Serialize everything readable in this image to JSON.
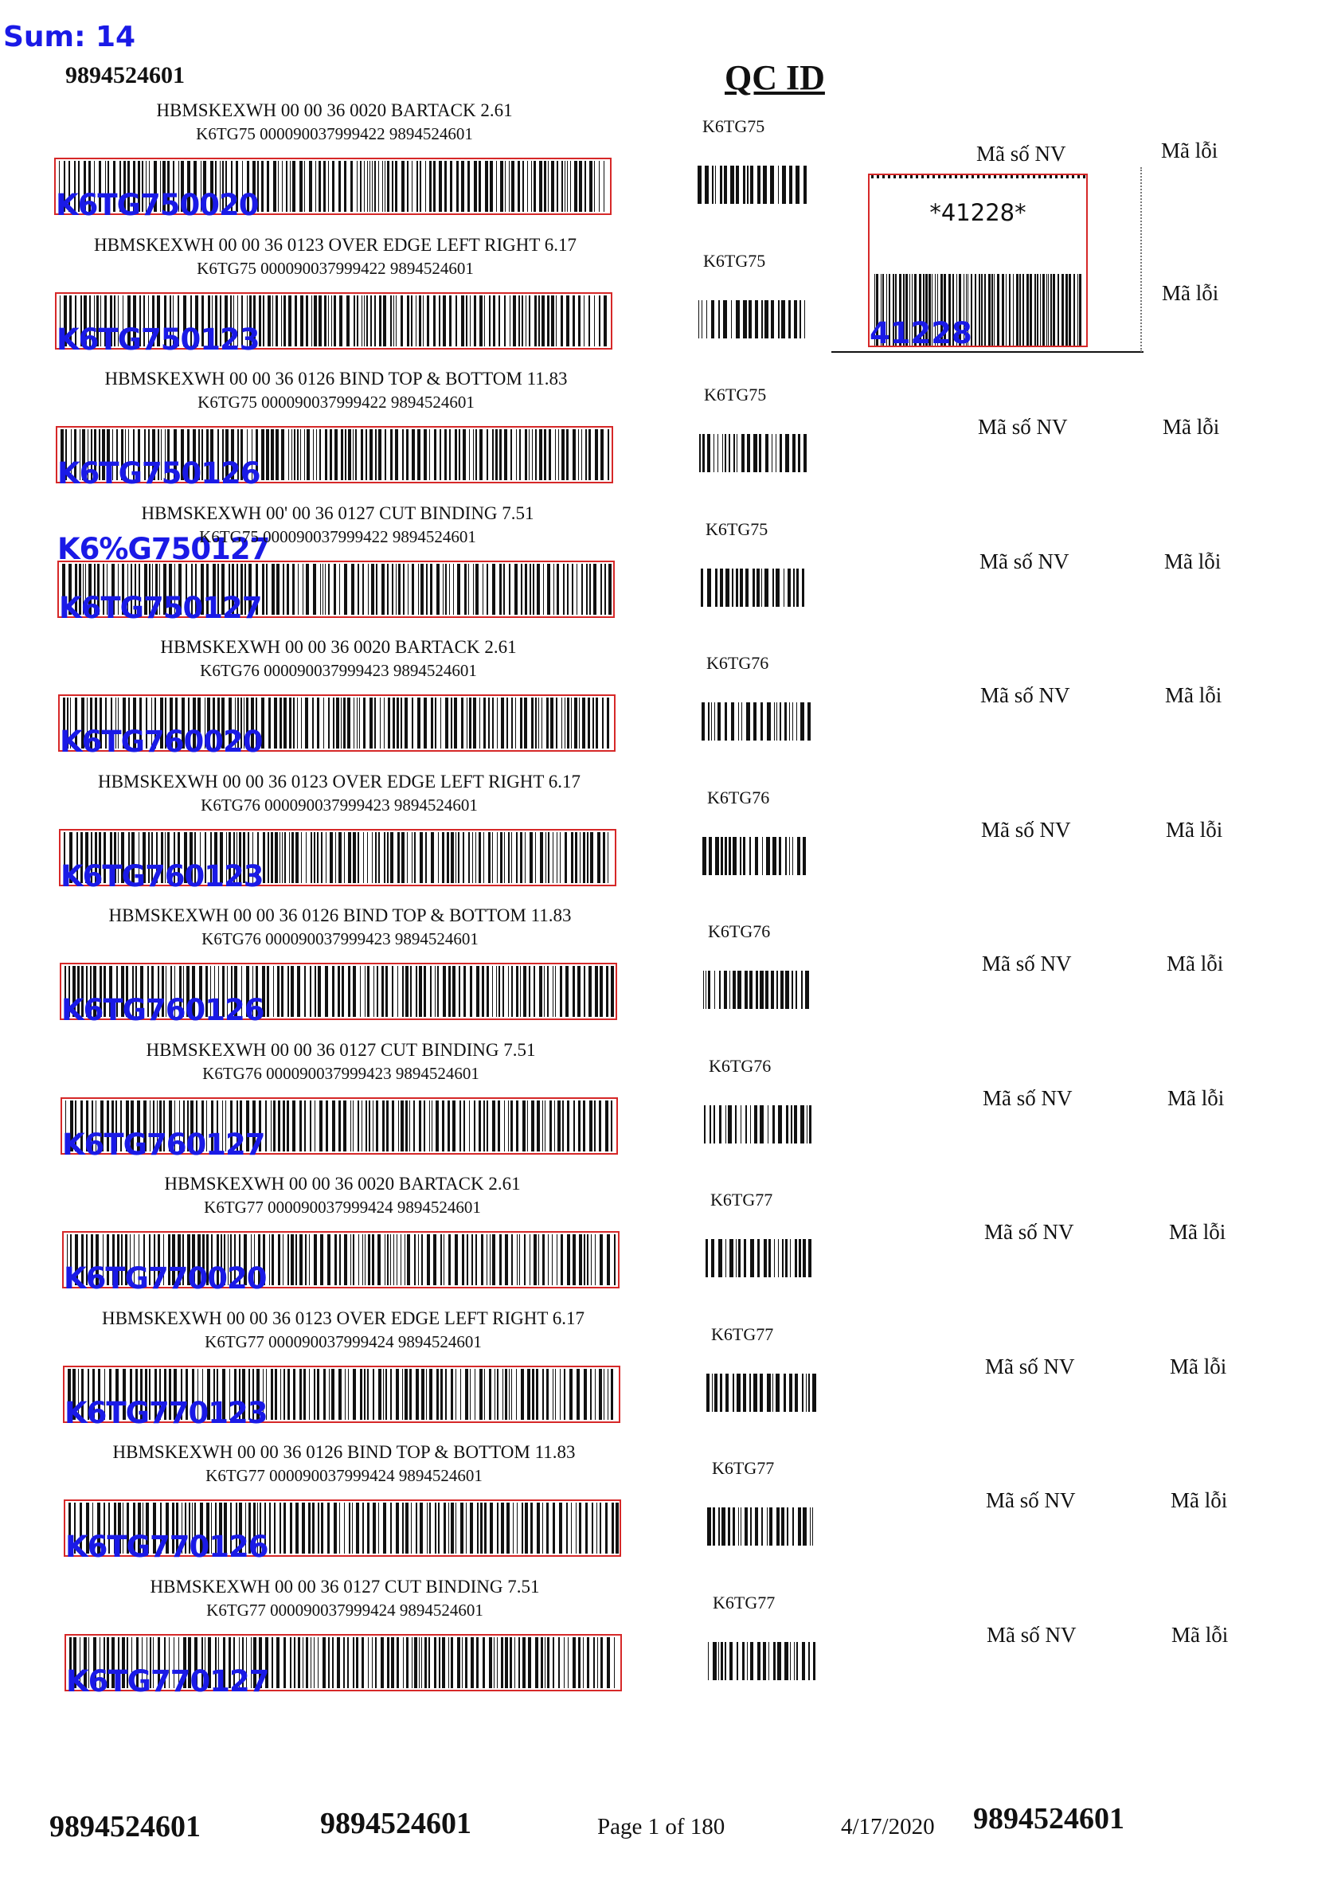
{
  "header": {
    "sum_label": "Sum: 14",
    "top_number": "9894524601",
    "qc_title": "QC ID"
  },
  "labels": [
    {
      "line1": "HBMSKEXWH 00  00 36 0020 BARTACK 2.61",
      "line2": "K6TG75 000090037999422 9894524601",
      "barcode_text": "K6TG750020",
      "qc_code": "K6TG75"
    },
    {
      "line1": "HBMSKEXWH 00  00 36 0123 OVER EDGE LEFT RIGHT 6.17",
      "line2": "K6TG75 000090037999422 9894524601",
      "barcode_text": "K6TG750123",
      "qc_code": "K6TG75"
    },
    {
      "line1": "HBMSKEXWH 00  00 36 0126 BIND TOP & BOTTOM 11.83",
      "line2": "K6TG75 000090037999422 9894524601",
      "barcode_text": "K6TG750126",
      "qc_code": "K6TG75"
    },
    {
      "line1": "HBMSKEXWH 00' 00 36 0127 CUT BINDING 7.51",
      "line2": "K6TG75 000090037999422 9894524601",
      "barcode_text": "K6TG750127",
      "qc_code": "K6TG75"
    },
    {
      "line1": "HBMSKEXWH 00  00 36 0020 BARTACK 2.61",
      "line2": "K6TG76 000090037999423 9894524601",
      "barcode_text": "K6TG760020",
      "qc_code": "K6TG76"
    },
    {
      "line1": "HBMSKEXWH 00  00 36 0123 OVER EDGE LEFT RIGHT 6.17",
      "line2": "K6TG76 000090037999423 9894524601",
      "barcode_text": "K6TG760123",
      "qc_code": "K6TG76"
    },
    {
      "line1": "HBMSKEXWH 00  00 36 0126 BIND TOP & BOTTOM 11.83",
      "line2": "K6TG76 000090037999423 9894524601",
      "barcode_text": "K6TG760126",
      "qc_code": "K6TG76"
    },
    {
      "line1": "HBMSKEXWH 00  00 36 0127 CUT BINDING 7.51",
      "line2": "K6TG76 000090037999423 9894524601",
      "barcode_text": "K6TG760127",
      "qc_code": "K6TG76"
    },
    {
      "line1": "HBMSKEXWH 00  00 36 0020 BARTACK 2.61",
      "line2": "K6TG77 000090037999424 9894524601",
      "barcode_text": "K6TG770020",
      "qc_code": "K6TG77"
    },
    {
      "line1": "HBMSKEXWH 00  00 36 0123 OVER EDGE LEFT RIGHT 6.17",
      "line2": "K6TG77 000090037999424 9894524601",
      "barcode_text": "K6TG770123",
      "qc_code": "K6TG77"
    },
    {
      "line1": "HBMSKEXWH 00  00 36 0126 BIND TOP & BOTTOM 11.83",
      "line2": "K6TG77 000090037999424 9894524601",
      "barcode_text": "K6TG770126",
      "qc_code": "K6TG77"
    },
    {
      "line1": "HBMSKEXWH 00  00 36 0127 CUT BINDING 7.51",
      "line2": "K6TG77 000090037999424 9894524601",
      "barcode_text": "K6TG770127",
      "qc_code": "K6TG77"
    }
  ],
  "extra_overlay": "K6%G750127",
  "columns": {
    "employee": "Mã số NV",
    "error": "Mã lỗi"
  },
  "qc_badge": {
    "star_text": "*41228*",
    "overlay_text": "41228"
  },
  "footer": {
    "number_1": "9894524601",
    "number_2": "9894524601",
    "page": "Page 1 of 180",
    "date": "4/17/2020",
    "number_3": "9894524601"
  }
}
